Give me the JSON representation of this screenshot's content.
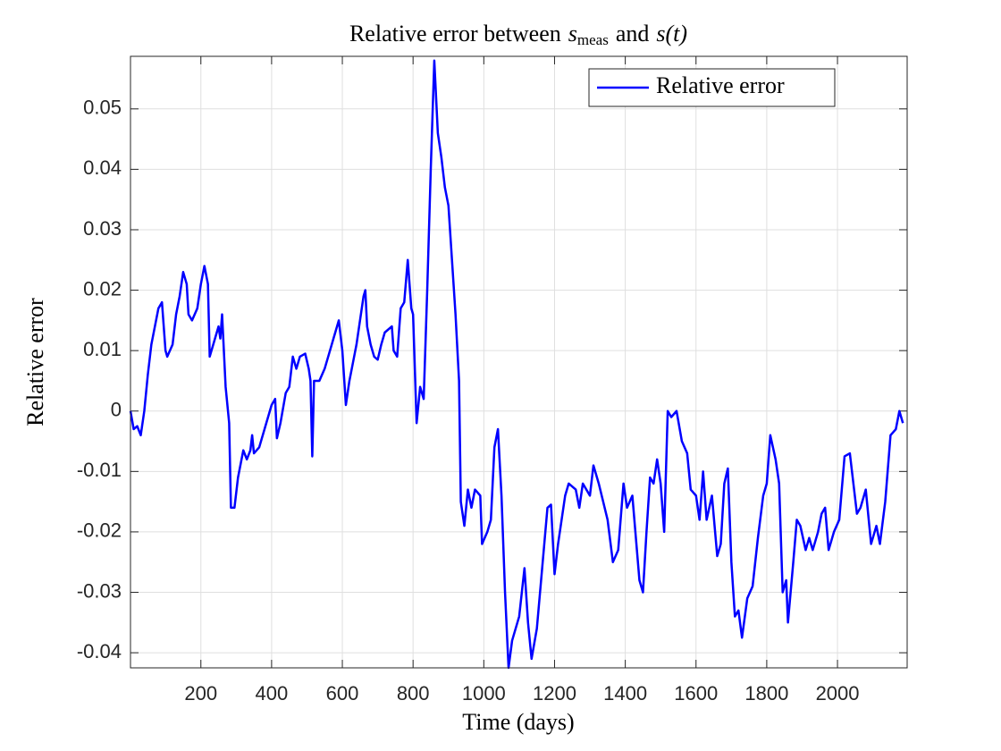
{
  "chart_data": {
    "type": "line",
    "title": [
      "Relative error between",
      "s",
      "meas",
      "and",
      "s(t)"
    ],
    "x_label": "Time (days)",
    "y_label": "Relative error",
    "xlim": [
      1,
      2197
    ],
    "ylim": [
      -0.0425,
      0.0587
    ],
    "xticks": [
      200,
      400,
      600,
      800,
      1000,
      1200,
      1400,
      1600,
      1800,
      2000
    ],
    "yticks": [
      -0.04,
      -0.03,
      -0.02,
      -0.01,
      0,
      0.01,
      0.02,
      0.03,
      0.04,
      0.05
    ],
    "grid": true,
    "legend": "top-right",
    "x": [
      1,
      10,
      20,
      30,
      40,
      50,
      60,
      70,
      80,
      90,
      100,
      105,
      120,
      130,
      140,
      150,
      160,
      165,
      175,
      190,
      200,
      210,
      220,
      225,
      240,
      250,
      255,
      260,
      270,
      280,
      285,
      295,
      305,
      320,
      330,
      340,
      345,
      350,
      365,
      380,
      400,
      410,
      415,
      425,
      440,
      450,
      460,
      470,
      480,
      495,
      505,
      510,
      515,
      520,
      535,
      550,
      560,
      575,
      590,
      600,
      610,
      620,
      630,
      640,
      650,
      660,
      665,
      670,
      680,
      690,
      700,
      710,
      720,
      740,
      745,
      755,
      765,
      775,
      785,
      795,
      800,
      810,
      820,
      830,
      840,
      850,
      860,
      870,
      880,
      890,
      900,
      910,
      920,
      930,
      935,
      945,
      955,
      965,
      975,
      990,
      995,
      1010,
      1020,
      1030,
      1040,
      1050,
      1060,
      1070,
      1080,
      1100,
      1115,
      1125,
      1135,
      1150,
      1165,
      1180,
      1190,
      1200,
      1210,
      1230,
      1240,
      1260,
      1270,
      1280,
      1300,
      1310,
      1325,
      1350,
      1365,
      1380,
      1395,
      1405,
      1420,
      1440,
      1450,
      1460,
      1470,
      1480,
      1490,
      1500,
      1510,
      1520,
      1530,
      1545,
      1560,
      1575,
      1585,
      1600,
      1610,
      1620,
      1630,
      1645,
      1660,
      1670,
      1680,
      1690,
      1700,
      1710,
      1720,
      1730,
      1745,
      1760,
      1775,
      1790,
      1800,
      1810,
      1825,
      1835,
      1845,
      1855,
      1860,
      1875,
      1885,
      1895,
      1910,
      1920,
      1930,
      1945,
      1955,
      1965,
      1975,
      1990,
      2005,
      2020,
      2035,
      2045,
      2055,
      2065,
      2080,
      2095,
      2110,
      2120,
      2135,
      2150,
      2165,
      2175,
      2185
    ],
    "series": [
      {
        "name": "Relative error",
        "color": "#0000ff",
        "values": [
          0,
          -0.003,
          -0.0025,
          -0.004,
          0,
          0.006,
          0.011,
          0.014,
          0.017,
          0.018,
          0.01,
          0.009,
          0.011,
          0.016,
          0.019,
          0.023,
          0.021,
          0.016,
          0.015,
          0.017,
          0.021,
          0.024,
          0.021,
          0.009,
          0.012,
          0.014,
          0.012,
          0.016,
          0.004,
          -0.002,
          -0.016,
          -0.016,
          -0.011,
          -0.0065,
          -0.008,
          -0.0065,
          -0.004,
          -0.007,
          -0.006,
          -0.003,
          0.001,
          0.002,
          -0.0045,
          -0.002,
          0.003,
          0.004,
          0.009,
          0.007,
          0.009,
          0.0095,
          0.007,
          0.005,
          -0.0075,
          0.005,
          0.005,
          0.007,
          0.009,
          0.012,
          0.015,
          0.01,
          0.001,
          0.005,
          0.008,
          0.011,
          0.015,
          0.019,
          0.02,
          0.014,
          0.011,
          0.009,
          0.0085,
          0.011,
          0.013,
          0.014,
          0.01,
          0.009,
          0.017,
          0.018,
          0.025,
          0.017,
          0.016,
          -0.002,
          0.004,
          0.002,
          0.02,
          0.04,
          0.058,
          0.046,
          0.042,
          0.037,
          0.034,
          0.025,
          0.016,
          0.005,
          -0.015,
          -0.019,
          -0.013,
          -0.016,
          -0.013,
          -0.014,
          -0.022,
          -0.02,
          -0.018,
          -0.006,
          -0.003,
          -0.014,
          -0.03,
          -0.0425,
          -0.038,
          -0.034,
          -0.026,
          -0.035,
          -0.041,
          -0.036,
          -0.026,
          -0.016,
          -0.0155,
          -0.027,
          -0.022,
          -0.014,
          -0.012,
          -0.013,
          -0.016,
          -0.012,
          -0.014,
          -0.009,
          -0.012,
          -0.018,
          -0.025,
          -0.023,
          -0.012,
          -0.016,
          -0.014,
          -0.028,
          -0.03,
          -0.02,
          -0.011,
          -0.012,
          -0.008,
          -0.012,
          -0.02,
          0,
          -0.001,
          0,
          -0.005,
          -0.007,
          -0.013,
          -0.014,
          -0.018,
          -0.01,
          -0.018,
          -0.014,
          -0.024,
          -0.022,
          -0.012,
          -0.0095,
          -0.025,
          -0.034,
          -0.033,
          -0.0375,
          -0.031,
          -0.029,
          -0.021,
          -0.014,
          -0.012,
          -0.004,
          -0.008,
          -0.012,
          -0.03,
          -0.028,
          -0.035,
          -0.025,
          -0.018,
          -0.019,
          -0.023,
          -0.021,
          -0.023,
          -0.02,
          -0.017,
          -0.016,
          -0.023,
          -0.02,
          -0.018,
          -0.0075,
          -0.007,
          -0.012,
          -0.017,
          -0.016,
          -0.013,
          -0.022,
          -0.019,
          -0.022,
          -0.015,
          -0.004,
          -0.003,
          0,
          -0.002
        ]
      }
    ]
  }
}
